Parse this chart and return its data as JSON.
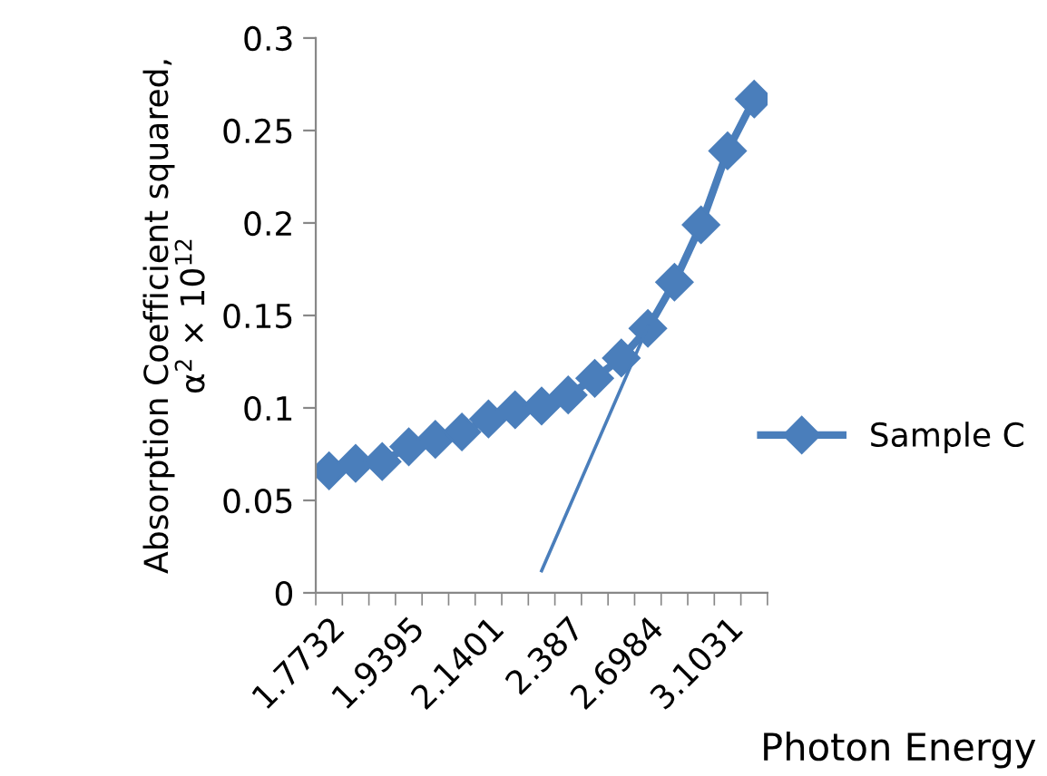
{
  "chart_data": {
    "type": "line",
    "xlabel": "Photon Energy",
    "ylabel": "Absorption Coefficient squared,\nα$^{2}$ × 10$^{12}$",
    "categories": [
      "1.7732",
      null,
      null,
      "1.9395",
      null,
      null,
      "2.1401",
      null,
      null,
      "2.387",
      null,
      null,
      "2.6984",
      null,
      null,
      "3.1031",
      null
    ],
    "series": [
      {
        "name": "Sample C",
        "color": "#4a7ebb",
        "values": [
          0.066,
          0.07,
          0.071,
          0.079,
          0.083,
          0.087,
          0.094,
          0.099,
          0.101,
          0.107,
          0.116,
          0.127,
          0.143,
          0.168,
          0.199,
          0.239,
          0.267
        ],
        "marker": "diamond"
      },
      {
        "type": "line",
        "color": "#4a7ebb",
        "values": [
          null,
          null,
          null,
          null,
          null,
          null,
          null,
          null,
          0.012,
          null,
          null,
          null,
          0.144,
          null,
          null,
          null,
          null
        ],
        "marker": "none"
      }
    ],
    "ylim": [
      0,
      0.3
    ],
    "yticks": [
      {
        "value": 0,
        "label": "0"
      },
      0.05,
      0.1,
      0.15,
      0.2,
      0.25,
      0.3
    ],
    "grid": false,
    "legend": "right",
    "line_style": "solid"
  }
}
